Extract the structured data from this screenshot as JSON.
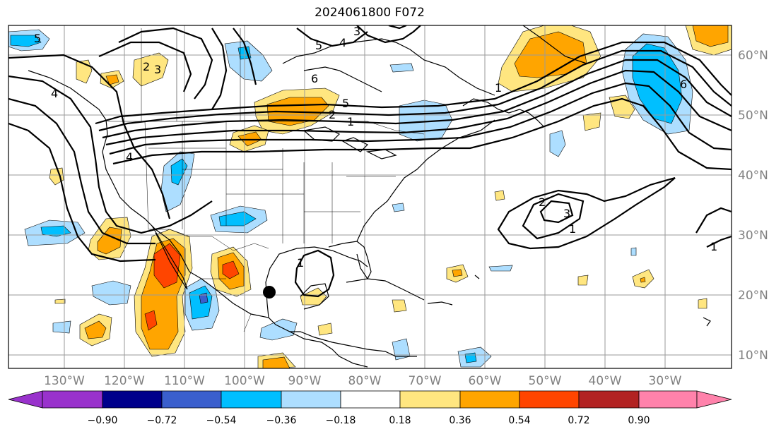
{
  "title": "2024061800 F072",
  "lon_labels": [
    "130°W",
    "120°W",
    "110°W",
    "100°W",
    "90°W",
    "80°W",
    "70°W",
    "60°W",
    "50°W",
    "40°W",
    "30°W"
  ],
  "lat_labels": [
    "60°N",
    "50°N",
    "40°N",
    "30°N",
    "20°N",
    "10°N"
  ],
  "colorbar": {
    "ticks": [
      "−0.90",
      "−0.72",
      "−0.54",
      "−0.36",
      "−0.18",
      "0.18",
      "0.36",
      "0.54",
      "0.72",
      "0.90"
    ],
    "colors": [
      "#9932CC",
      "#00008B",
      "#3A5FCD",
      "#00BFFF",
      "#ADDEFF",
      "#FFFFFF",
      "#FFE680",
      "#FFA500",
      "#FF4500",
      "#B22222",
      "#FF82AB"
    ]
  },
  "contour_labels": [
    "5",
    "2",
    "3",
    "4",
    "6",
    "5",
    "2",
    "1",
    "3",
    "4",
    "1",
    "2",
    "3",
    "1",
    "6",
    "1",
    "1",
    "4",
    "5"
  ],
  "map": {
    "marker": "storm-center-dot"
  }
}
